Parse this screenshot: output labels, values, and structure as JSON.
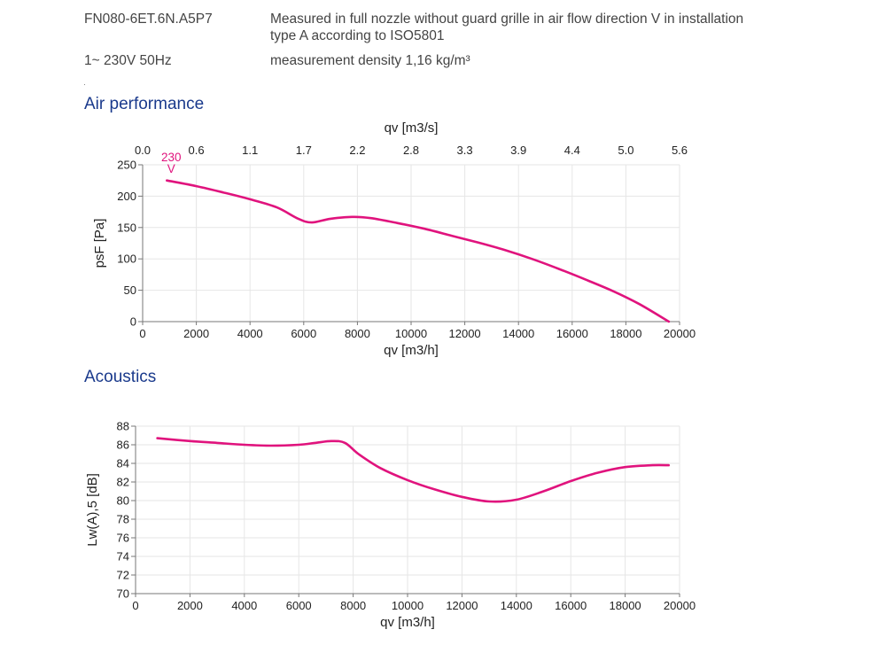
{
  "header": {
    "model": "FN080-6ET.6N.A5P7",
    "description_line1": "Measured in full nozzle without guard grille in air flow direction V in installation",
    "description_line2": "type A according to ISO5801",
    "supply": "1~ 230V 50Hz",
    "density": "measurement density 1,16 kg/m³"
  },
  "sections": {
    "air": "Air performance",
    "acoustics": "Acoustics"
  },
  "colors": {
    "curve": "#e0137d",
    "title": "#1a3a8c",
    "grid": "#e6e6e6"
  },
  "chart_data": [
    {
      "type": "line",
      "id": "air",
      "xlabel": "qv [m3/h]",
      "x2label": "qv [m3/s]",
      "ylabel": "psF [Pa]",
      "xlim": [
        0,
        20000
      ],
      "ylim": [
        0,
        250
      ],
      "xticks": [
        0,
        2000,
        4000,
        6000,
        8000,
        10000,
        12000,
        14000,
        16000,
        18000,
        20000
      ],
      "x2ticks": [
        "0.0",
        "0.6",
        "1.1",
        "1.7",
        "2.2",
        "2.8",
        "3.3",
        "3.9",
        "4.4",
        "5.0",
        "5.6"
      ],
      "yticks": [
        0,
        50,
        100,
        150,
        200,
        250
      ],
      "grid": true,
      "series": [
        {
          "name": "230 V",
          "x": [
            900,
            2000,
            3000,
            4000,
            5000,
            5800,
            6300,
            7000,
            7800,
            8500,
            9500,
            10500,
            11500,
            12500,
            13500,
            14500,
            15500,
            16500,
            17500,
            18500,
            19600
          ],
          "y": [
            225,
            216,
            206,
            195,
            182,
            164,
            158,
            164,
            167,
            165,
            157,
            148,
            137,
            126,
            114,
            100,
            84,
            67,
            49,
            28,
            0
          ]
        }
      ]
    },
    {
      "type": "line",
      "id": "acoustics",
      "xlabel": "qv [m3/h]",
      "ylabel": "Lw(A),5 [dB]",
      "xlim": [
        0,
        20000
      ],
      "ylim": [
        70,
        88
      ],
      "xticks": [
        0,
        2000,
        4000,
        6000,
        8000,
        10000,
        12000,
        14000,
        16000,
        18000,
        20000
      ],
      "yticks": [
        70,
        72,
        74,
        76,
        78,
        80,
        82,
        84,
        86,
        88
      ],
      "grid": true,
      "series": [
        {
          "x": [
            800,
            2000,
            3000,
            4000,
            5000,
            6000,
            6600,
            7200,
            7700,
            8200,
            9000,
            10000,
            11000,
            12000,
            13000,
            14000,
            15000,
            16000,
            17000,
            18000,
            19000,
            19600
          ],
          "y": [
            86.7,
            86.4,
            86.2,
            86.0,
            85.9,
            86.0,
            86.2,
            86.4,
            86.2,
            85.0,
            83.5,
            82.2,
            81.2,
            80.4,
            79.9,
            80.1,
            81.0,
            82.1,
            83.0,
            83.6,
            83.8,
            83.8
          ]
        }
      ]
    }
  ]
}
